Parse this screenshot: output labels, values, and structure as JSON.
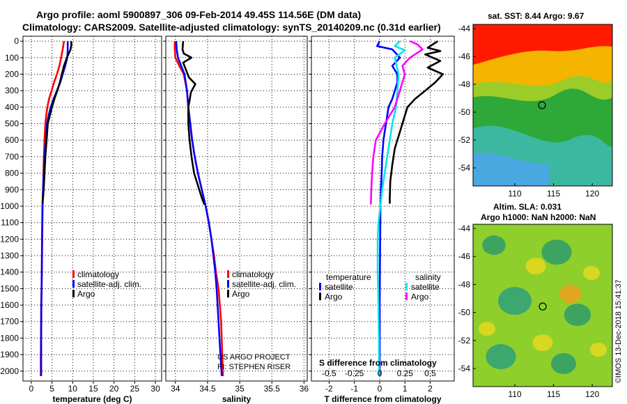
{
  "header": {
    "line1": "Argo profile: aoml 5900897_306 09-Feb-2014 49.45S 114.56E (DM data)",
    "line2": "Climatology: CARS2009. Satellite-adjusted climatology: synTS_20140209.nc (0.31d earlier)"
  },
  "colors": {
    "clim": "#ff0000",
    "sat": "#0000ff",
    "argo": "#000000",
    "sat_s": "#00e5ee",
    "argo_s": "#ff00ff"
  },
  "shared_y": {
    "ticks": [
      0,
      100,
      200,
      300,
      400,
      500,
      600,
      700,
      800,
      900,
      1000,
      1100,
      1200,
      1300,
      1400,
      1500,
      1600,
      1700,
      1800,
      1900,
      2000
    ]
  },
  "chart_data": [
    {
      "id": "temperature",
      "type": "line",
      "xlabel": "temperature (deg C)",
      "xlim": [
        -2,
        31.5
      ],
      "ylim": [
        2060,
        -30
      ],
      "xticks": [
        0,
        5,
        10,
        15,
        20,
        25,
        30
      ],
      "grid": true,
      "legend": {
        "placement": "lower-middle",
        "entries": [
          "climatology",
          "satellite-adj. clim.",
          "Argo"
        ]
      },
      "series": [
        {
          "name": "climatology",
          "color": "#ff0000",
          "x": [
            7.9,
            7.6,
            7.2,
            6.8,
            6.2,
            5.5,
            4.9,
            4.3,
            3.9,
            3.6,
            3.4,
            3.2,
            3.05,
            2.95,
            2.85,
            2.75,
            2.65,
            2.55,
            2.5,
            2.4,
            2.35,
            2.3,
            2.3
          ],
          "y": [
            0,
            50,
            100,
            150,
            200,
            250,
            300,
            350,
            400,
            450,
            500,
            600,
            700,
            800,
            900,
            1000,
            1200,
            1400,
            1500,
            1600,
            1800,
            1950,
            2030
          ]
        },
        {
          "name": "satellite-adj. clim.",
          "color": "#0000ff",
          "x": [
            8.8,
            8.8,
            8.7,
            8.2,
            7.6,
            7.0,
            6.2,
            5.4,
            4.7,
            4.2,
            3.8,
            3.5,
            3.2,
            3.0,
            2.85,
            2.7,
            2.6,
            2.55,
            2.45,
            2.4,
            2.4
          ],
          "y": [
            0,
            50,
            100,
            150,
            200,
            250,
            300,
            350,
            400,
            450,
            500,
            600,
            700,
            800,
            900,
            1000,
            1200,
            1400,
            1600,
            1800,
            2030
          ]
        },
        {
          "name": "Argo",
          "color": "#000000",
          "x": [
            9.6,
            9.7,
            9.5,
            8.6,
            7.9,
            7.4,
            6.9,
            6.3,
            5.6,
            5.0,
            4.5,
            4.0,
            3.7,
            3.4,
            3.2,
            3.0,
            2.85,
            2.7
          ],
          "y": [
            0,
            20,
            50,
            100,
            150,
            200,
            250,
            300,
            350,
            400,
            450,
            500,
            600,
            700,
            800,
            900,
            950,
            985
          ]
        }
      ]
    },
    {
      "id": "salinity",
      "type": "line",
      "xlabel": "salinity",
      "xlim": [
        33.85,
        36.05
      ],
      "ylim": [
        2060,
        -30
      ],
      "xticks": [
        34,
        34.5,
        35,
        35.5,
        36
      ],
      "grid": true,
      "legend": {
        "placement": "lower-middle",
        "entries": [
          "climatology",
          "satellite-adj. clim.",
          "Argo"
        ]
      },
      "series": [
        {
          "name": "climatology",
          "color": "#ff0000",
          "x": [
            33.99,
            33.99,
            34.0,
            34.06,
            34.13,
            34.18,
            34.2,
            34.23,
            34.26,
            34.3,
            34.35,
            34.41,
            34.47,
            34.52,
            34.56,
            34.6,
            34.63,
            34.67,
            34.71,
            34.74
          ],
          "y": [
            0,
            50,
            100,
            150,
            200,
            300,
            400,
            500,
            600,
            700,
            800,
            900,
            1000,
            1100,
            1200,
            1300,
            1400,
            1500,
            1700,
            2030
          ]
        },
        {
          "name": "satellite-adj. clim.",
          "color": "#0000ff",
          "x": [
            34.01,
            34.02,
            34.04,
            34.09,
            34.14,
            34.18,
            34.2,
            34.23,
            34.26,
            34.3,
            34.35,
            34.41,
            34.47,
            34.52,
            34.56,
            34.59,
            34.62,
            34.64,
            34.67,
            34.7,
            34.72
          ],
          "y": [
            0,
            50,
            100,
            150,
            200,
            300,
            400,
            500,
            600,
            700,
            800,
            900,
            1000,
            1100,
            1200,
            1300,
            1400,
            1500,
            1700,
            1900,
            2030
          ]
        },
        {
          "name": "Argo",
          "color": "#000000",
          "x": [
            34.12,
            34.11,
            34.13,
            34.25,
            34.12,
            34.17,
            34.21,
            34.31,
            34.24,
            34.22,
            34.2,
            34.2,
            34.22,
            34.25,
            34.29,
            34.33,
            34.37,
            34.41,
            34.45
          ],
          "y": [
            0,
            50,
            75,
            100,
            130,
            180,
            220,
            260,
            310,
            360,
            400,
            500,
            600,
            700,
            800,
            850,
            900,
            950,
            990
          ]
        }
      ]
    },
    {
      "id": "t-difference",
      "type": "line",
      "xlabel": "T difference from climatology",
      "xlim": [
        -2.7,
        2.95
      ],
      "ylim": [
        2060,
        -30
      ],
      "xticks": [
        -2,
        -1,
        0,
        1,
        2
      ],
      "top_axis_label": "S difference from climatology",
      "top_ticks": [
        "-0.5",
        "-0.25",
        "0",
        "0.25",
        "0.5"
      ],
      "top_tick_values": [
        -0.5,
        -0.25,
        0,
        0.25,
        0.5
      ],
      "top_scale": 4,
      "grid": true,
      "legend": {
        "placement": "lower-middle",
        "groups": [
          {
            "title": "temperature",
            "entries": [
              "satellite",
              "Argo"
            ]
          },
          {
            "title": "salinity",
            "entries": [
              "satellite",
              "Argo"
            ]
          }
        ]
      },
      "series": [
        {
          "name": "satellite",
          "group": "temperature",
          "color": "#0000ff",
          "x": [
            0.0,
            -0.1,
            0.5,
            0.8,
            0.5,
            0.7,
            0.7,
            0.6,
            0.5,
            0.35,
            0.25,
            0.15,
            0.1,
            0.08,
            0.05,
            0.03,
            0.02,
            0.01,
            0.0,
            0.0,
            0.0
          ],
          "y": [
            0,
            30,
            50,
            100,
            150,
            200,
            250,
            300,
            350,
            400,
            500,
            600,
            700,
            800,
            900,
            1000,
            1200,
            1400,
            1600,
            1800,
            2030
          ]
        },
        {
          "name": "Argo",
          "group": "temperature",
          "color": "#000000",
          "x": [
            2.3,
            1.9,
            2.4,
            1.8,
            2.4,
            1.9,
            2.5,
            2.2,
            1.8,
            1.4,
            1.1,
            1.0,
            0.8,
            0.6,
            0.5,
            0.42,
            0.4,
            0.4
          ],
          "y": [
            0,
            40,
            60,
            80,
            120,
            160,
            200,
            250,
            300,
            350,
            400,
            450,
            550,
            650,
            750,
            850,
            950,
            985
          ]
        },
        {
          "name": "satellite",
          "group": "salinity",
          "color": "#00e5ee",
          "x": [
            0.8,
            0.6,
            1.0,
            0.6,
            0.75,
            0.7,
            0.65,
            0.5,
            0.4,
            0.3,
            0.2,
            0.1,
            0.03,
            -0.05,
            -0.08,
            -0.08,
            -0.06,
            -0.05,
            -0.04,
            -0.03,
            -0.02
          ],
          "y": [
            0,
            30,
            55,
            100,
            200,
            300,
            400,
            500,
            600,
            700,
            800,
            900,
            1000,
            1100,
            1200,
            1400,
            1500,
            1600,
            1700,
            1800,
            2030
          ]
        },
        {
          "name": "Argo",
          "group": "salinity",
          "color": "#ff00ff",
          "x": [
            1.2,
            1.5,
            1.7,
            1.2,
            0.9,
            1.0,
            0.9,
            0.8,
            0.6,
            0.2,
            -0.15,
            -0.25,
            -0.3,
            -0.33,
            -0.35
          ],
          "y": [
            0,
            20,
            50,
            100,
            150,
            200,
            250,
            300,
            400,
            500,
            600,
            700,
            800,
            900,
            990
          ]
        }
      ]
    }
  ],
  "maps": [
    {
      "id": "sst-map",
      "title": "sat. SST: 8.44 Argo: 9.67",
      "xticks": [
        "110",
        "115",
        "120"
      ],
      "yticks": [
        "-44",
        "-46",
        "-48",
        "-50",
        "-52",
        "-54"
      ]
    },
    {
      "id": "sla-map",
      "title1": "Altim. SLA: 0.031",
      "title2": "Argo h1000: NaN h2000: NaN",
      "xticks": [
        "110",
        "115",
        "120"
      ],
      "yticks": [
        "-44",
        "-46",
        "-48",
        "-50",
        "-52",
        "-54"
      ]
    }
  ],
  "credits": {
    "line1": "US ARGO PROJECT",
    "line2": "PI: STEPHEN RISER",
    "stamp": "©IMOS 13-Dec-2018 15:41:37"
  }
}
